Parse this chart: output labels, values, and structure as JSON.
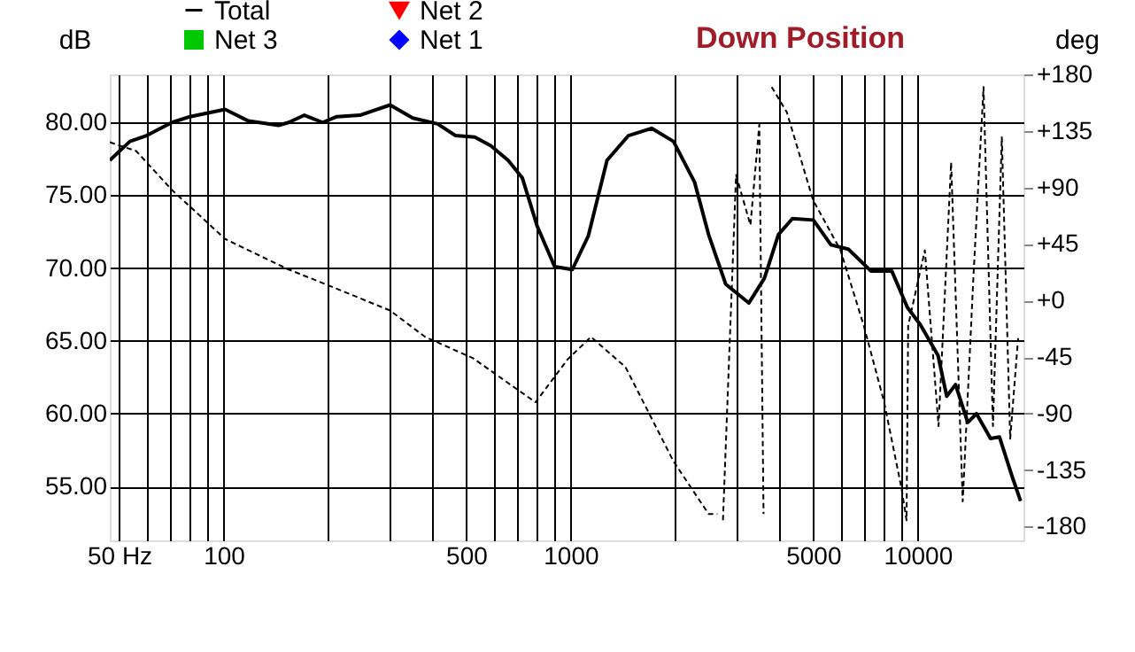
{
  "chart_data": {
    "type": "line",
    "title": "Down Position",
    "ylabel": "dB",
    "y2label": "deg",
    "xlim": [
      47,
      20200
    ],
    "ylim": [
      51.3,
      83.3
    ],
    "y2lim": [
      -191,
      180
    ],
    "log": "x",
    "xticks": [
      {
        "value": 50,
        "label": "50 Hz"
      },
      {
        "value": 60,
        "label": null
      },
      {
        "value": 70,
        "label": null
      },
      {
        "value": 80,
        "label": null
      },
      {
        "value": 90,
        "label": null
      },
      100,
      {
        "value": 200,
        "label": null
      },
      {
        "value": 300,
        "label": null
      },
      {
        "value": 400,
        "label": null
      },
      500,
      {
        "value": 600,
        "label": null
      },
      {
        "value": 700,
        "label": null
      },
      {
        "value": 800,
        "label": null
      },
      {
        "value": 900,
        "label": null
      },
      1000,
      {
        "value": 2000,
        "label": null
      },
      {
        "value": 3000,
        "label": null
      },
      {
        "value": 4000,
        "label": null
      },
      5000,
      {
        "value": 6000,
        "label": null
      },
      {
        "value": 7000,
        "label": null
      },
      {
        "value": 8000,
        "label": null
      },
      {
        "value": 9000,
        "label": null
      },
      10000
    ],
    "yticks": [
      {
        "value": 55,
        "label": "55.00"
      },
      {
        "value": 60,
        "label": "60.00"
      },
      {
        "value": 65,
        "label": "65.00"
      },
      {
        "value": 70,
        "label": "70.00"
      },
      {
        "value": 75,
        "label": "75.00"
      },
      {
        "value": 80,
        "label": "80.00"
      }
    ],
    "y2ticks": [
      {
        "value": 180,
        "label": "+180"
      },
      {
        "value": 135,
        "label": "+135"
      },
      {
        "value": 90,
        "label": "+90"
      },
      {
        "value": 45,
        "label": "+45"
      },
      {
        "value": 0,
        "label": "+0"
      },
      -45,
      -90,
      -135,
      -180
    ],
    "grid": true,
    "legend": "top",
    "series": [
      {
        "name": "Total",
        "color": "#000000",
        "marker": "none",
        "line_style": "solid",
        "x": [
          47,
          53.7,
          60,
          71,
          80,
          101,
          118,
          144,
          154,
          171,
          193,
          212,
          247,
          302,
          351,
          414,
          466,
          530,
          589,
          661,
          726,
          801,
          900,
          1012,
          1125,
          1274,
          1469,
          1712,
          1980,
          2278,
          2500,
          2800,
          3265,
          3620,
          3973,
          4360,
          5010,
          5630,
          6320,
          7340,
          8430,
          9350,
          10200,
          11460,
          12140,
          12870,
          13960,
          14790,
          16240,
          17230,
          18730,
          19820
        ],
        "values": [
          77.4,
          78.7,
          79.1,
          80.0,
          80.4,
          80.9,
          80.1,
          79.8,
          80.0,
          80.5,
          80.0,
          80.4,
          80.5,
          81.2,
          80.3,
          79.9,
          79.1,
          79.0,
          78.4,
          77.4,
          76.2,
          72.9,
          70.1,
          69.9,
          72.2,
          77.4,
          79.1,
          79.6,
          78.7,
          75.9,
          72.3,
          68.9,
          67.6,
          69.3,
          72.3,
          73.4,
          73.3,
          71.6,
          71.3,
          69.8,
          69.8,
          67.3,
          66.1,
          64.0,
          61.2,
          62.0,
          59.4,
          60.0,
          58.3,
          58.4,
          55.7,
          54.0
        ]
      },
      {
        "name": "Net 2",
        "color": "#ff0000",
        "marker": "triangle"
      },
      {
        "name": "Net 3",
        "color": "#00c800",
        "marker": "square"
      },
      {
        "name": "Net 1",
        "color": "#0000ff",
        "marker": "diamond"
      },
      {
        "color": "#000000",
        "axis": "y2",
        "marker": "none",
        "line_style": "dashed",
        "x": [
          47,
          56,
          71,
          101,
          153,
          205,
          302,
          381,
          524,
          687,
          793,
          980,
          1145,
          1440,
          1980,
          2500,
          2650,
          2700,
          2750,
          3000,
          3300,
          3500,
          3600,
          3700,
          3800,
          4200,
          5000,
          6000,
          7000,
          8000,
          9000,
          9300,
          9400,
          10500,
          11500,
          12500,
          13500,
          14500,
          15500,
          16500,
          17500,
          18500,
          19500
        ],
        "values": [
          126,
          119,
          88,
          49,
          25,
          11,
          -8,
          -29,
          -46,
          -69,
          -81,
          -47,
          -29,
          -53,
          -128,
          -170,
          -170,
          null,
          -175,
          100,
          60,
          140,
          -170,
          null,
          170,
          150,
          80,
          40,
          -20,
          -80,
          -150,
          -175,
          -20,
          40,
          -100,
          110,
          -160,
          20,
          170,
          -100,
          130,
          -110,
          -30
        ]
      }
    ]
  }
}
